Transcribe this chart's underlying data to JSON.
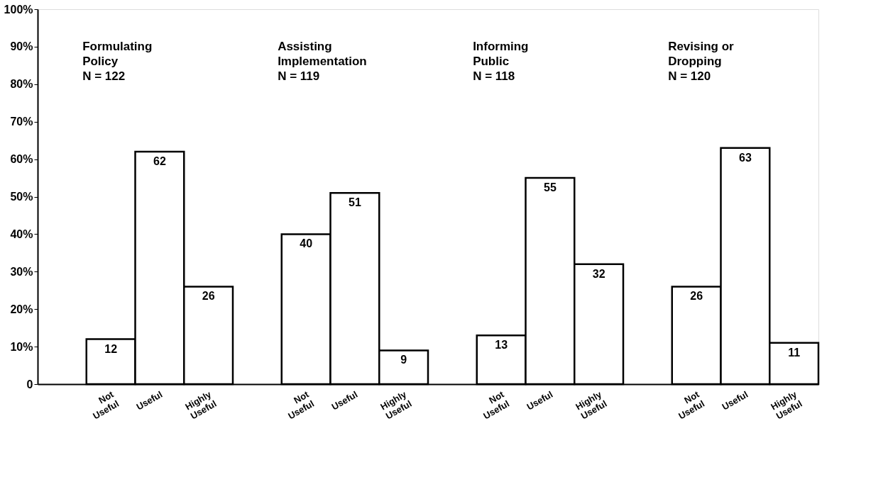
{
  "chart_data": {
    "type": "bar",
    "categories": [
      "Not Useful",
      "Useful",
      "Highly Useful",
      "Not Useful",
      "Useful",
      "Highly Useful",
      "Not Useful",
      "Useful",
      "Highly Useful",
      "Not Useful",
      "Useful",
      "Highly Useful"
    ],
    "values": [
      12,
      62,
      26,
      40,
      51,
      9,
      13,
      55,
      32,
      26,
      63,
      11
    ],
    "color": "#ffffff",
    "data_labels": true,
    "ylim": [
      0,
      100
    ],
    "yticks": [
      0,
      {
        "value": 10,
        "label": "10%"
      },
      {
        "value": 20,
        "label": "20%"
      },
      {
        "value": 30,
        "label": "30%"
      },
      {
        "value": 40,
        "label": "40%"
      },
      {
        "value": 50,
        "label": "50%"
      },
      {
        "value": 60,
        "label": "60%"
      },
      {
        "value": 70,
        "label": "70%"
      },
      {
        "value": 80,
        "label": "80%"
      },
      {
        "value": 90,
        "label": "90%"
      },
      {
        "value": 100,
        "label": "100%"
      }
    ],
    "grid": false,
    "annotations": [
      "Formulating\nPolicy\nN = 122",
      "Assisting\nImplementation\nN = 119",
      "Informing\nPublic\nN = 118",
      "Revising or\nDropping\nN = 120"
    ]
  }
}
